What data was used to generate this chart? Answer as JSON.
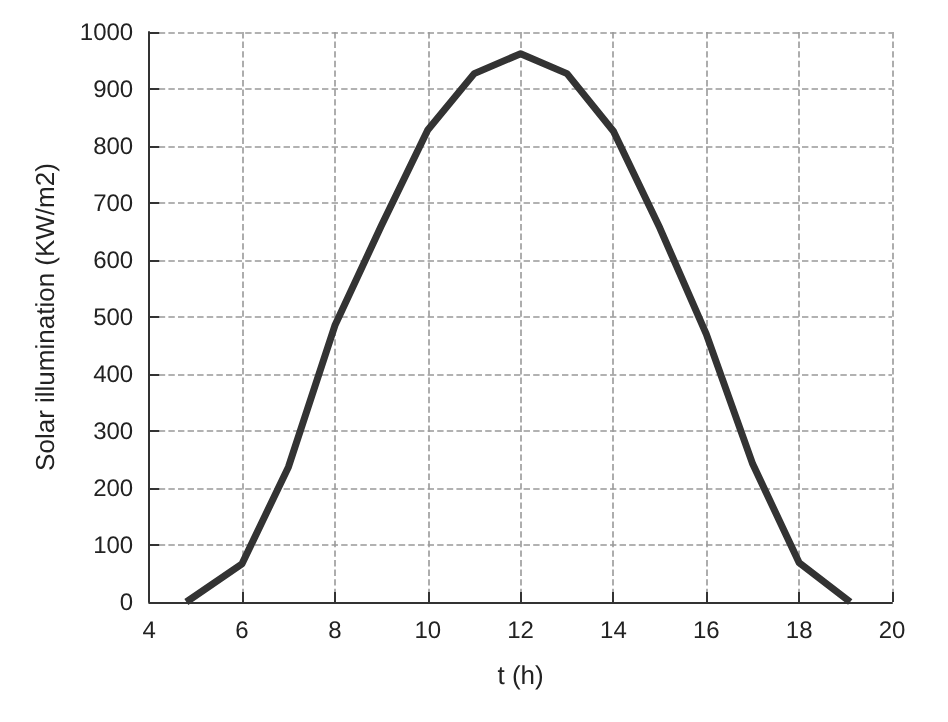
{
  "chart_data": {
    "type": "line",
    "xlabel": "t (h)",
    "ylabel": "Solar illumination (KW/m2)",
    "x": [
      4.8,
      6,
      7,
      8,
      9,
      10,
      11,
      12,
      13,
      14,
      15,
      16,
      17,
      18,
      19.1
    ],
    "series": [
      {
        "color": "#333333",
        "values": [
          0,
          67,
          237,
          485,
          660,
          828,
          927,
          962,
          927,
          826,
          656,
          470,
          242,
          69,
          0
        ]
      }
    ],
    "xlim": [
      4,
      20
    ],
    "xticks": [
      4,
      6,
      8,
      10,
      12,
      14,
      16,
      18,
      20
    ],
    "ylim": [
      0,
      1000
    ],
    "yticks": [
      0,
      100,
      200,
      300,
      400,
      500,
      600,
      700,
      800,
      900,
      1000
    ],
    "grid": true,
    "marker": "none",
    "line_style": "solid"
  }
}
